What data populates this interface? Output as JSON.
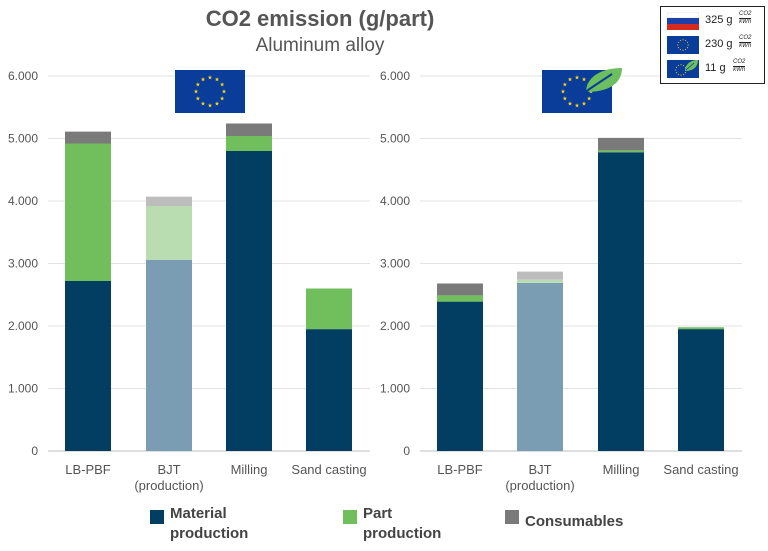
{
  "title": "CO2 emission (g/part)",
  "subtitle": "Aluminum alloy",
  "colors": {
    "material": "#023E62",
    "part": "#70BE5C",
    "consumables": "#7A7A7A",
    "material_light": "#7A9DB3",
    "part_light": "#B9DDB0",
    "consumables_light": "#BDBDBD",
    "eu_blue": "#0A3C9A",
    "eu_star": "#F5D21C",
    "leaf": "#6DBE5E"
  },
  "legend_box": {
    "rows": [
      {
        "flag": "russia-flag-icon",
        "value": "325 g",
        "unit_top": "CO2",
        "unit_bottom": "kWh"
      },
      {
        "flag": "eu-flag-icon",
        "value": "230 g",
        "unit_top": "CO2",
        "unit_bottom": "kWh"
      },
      {
        "flag": "eu-flag-leaf-icon",
        "value": "11 g",
        "unit_top": "CO2",
        "unit_bottom": "kWh"
      }
    ]
  },
  "legend": {
    "material_line1": "Material",
    "material_line2": "production",
    "part_line1": "Part",
    "part_line2": "production",
    "consumables": "Consumables"
  },
  "chart_data": [
    {
      "type": "bar",
      "stacked": true,
      "grid": true,
      "flag_icon": "eu-flag-icon",
      "categories": [
        "LB-PBF",
        "BJT\n(production)",
        "Milling",
        "Sand casting"
      ],
      "ylim": [
        0,
        6000
      ],
      "yticks": [
        "0",
        "1.000",
        "2.000",
        "3.000",
        "4.000",
        "5.000",
        "6.000"
      ],
      "series": [
        {
          "name": "Material production",
          "values": [
            2720,
            3060,
            4800,
            1950
          ]
        },
        {
          "name": "Part production",
          "values": [
            2200,
            860,
            240,
            650
          ]
        },
        {
          "name": "Consumables",
          "values": [
            190,
            150,
            200,
            0
          ]
        }
      ]
    },
    {
      "type": "bar",
      "stacked": true,
      "grid": true,
      "flag_icon": "eu-flag-leaf-icon",
      "categories": [
        "LB-PBF",
        "BJT\n(production)",
        "Milling",
        "Sand casting"
      ],
      "ylim": [
        0,
        6000
      ],
      "yticks": [
        "0",
        "1.000",
        "2.000",
        "3.000",
        "4.000",
        "5.000",
        "6.000"
      ],
      "series": [
        {
          "name": "Material production",
          "values": [
            2390,
            2690,
            4780,
            1950
          ]
        },
        {
          "name": "Part production",
          "values": [
            100,
            50,
            30,
            30
          ]
        },
        {
          "name": "Consumables",
          "values": [
            190,
            130,
            200,
            0
          ]
        }
      ]
    }
  ]
}
